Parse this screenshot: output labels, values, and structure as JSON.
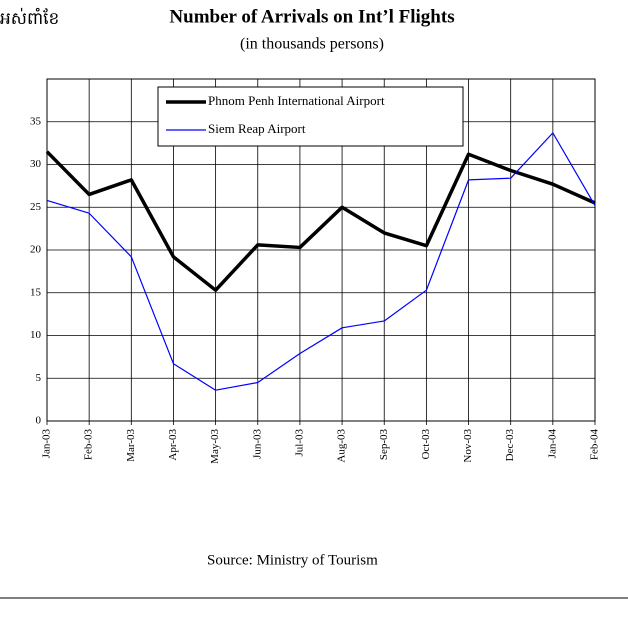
{
  "header_fragment": "អស់ពាំខែ",
  "chart_data": {
    "type": "line",
    "title": "Number of Arrivals on Int’l Flights",
    "subtitle": "(in thousands persons)",
    "categories": [
      "Jan-03",
      "Feb-03",
      "Mar-03",
      "Apr-03",
      "May-03",
      "Jun-03",
      "Jul-03",
      "Aug-03",
      "Sep-03",
      "Oct-03",
      "Nov-03",
      "Dec-03",
      "Jan-04",
      "Feb-04"
    ],
    "series": [
      {
        "name": "Phnom Penh International Airport",
        "color": "#000000",
        "width": 3.5,
        "values": [
          31.5,
          26.5,
          28.2,
          19.2,
          15.3,
          20.6,
          20.3,
          25,
          22,
          20.5,
          31.2,
          29.3,
          27.7,
          25.5
        ]
      },
      {
        "name": "Siem Reap Airport",
        "color": "#0000ff",
        "width": 1.2,
        "values": [
          25.8,
          24.3,
          19.2,
          6.7,
          3.6,
          4.5,
          7.9,
          10.9,
          11.7,
          15.3,
          28.2,
          28.4,
          33.7,
          25.2
        ]
      }
    ],
    "ylim": [
      0,
      40
    ],
    "yticks": [
      0,
      5,
      10,
      15,
      20,
      25,
      30,
      35
    ],
    "grid": true,
    "legend": "top",
    "source": "Source: Ministry of Tourism"
  }
}
